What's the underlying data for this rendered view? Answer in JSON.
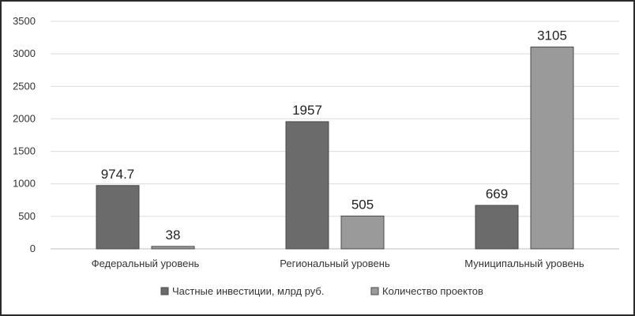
{
  "chart_data": {
    "type": "bar",
    "title": "",
    "xlabel": "",
    "ylabel": "",
    "categories": [
      "Федеральный уровень",
      "Региональный уровень",
      "Муниципальный уровень"
    ],
    "series": [
      {
        "name": "Частные инвестиции, млрд руб.",
        "values": [
          974.7,
          1957,
          669
        ],
        "labels": [
          "974.7",
          "1957",
          "669"
        ],
        "color": "#6b6b6b"
      },
      {
        "name": "Количество проектов",
        "values": [
          38,
          505,
          3105
        ],
        "labels": [
          "38",
          "505",
          "3105"
        ],
        "color": "#9a9a9a"
      }
    ],
    "ylim": [
      0,
      3500
    ],
    "yticks": [
      0,
      500,
      1000,
      1500,
      2000,
      2500,
      3000,
      3500
    ],
    "grid": true,
    "legend_position": "bottom"
  }
}
